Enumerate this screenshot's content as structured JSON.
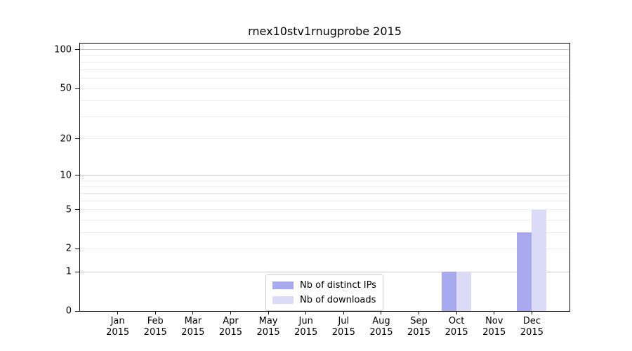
{
  "chart_data": {
    "type": "bar",
    "title": "rnex10stv1rnugprobe 2015",
    "year": "2015",
    "categories": [
      "Jan",
      "Feb",
      "Mar",
      "Apr",
      "May",
      "Jun",
      "Jul",
      "Aug",
      "Sep",
      "Oct",
      "Nov",
      "Dec"
    ],
    "series": [
      {
        "name": "Nb of distinct IPs",
        "color": "#a9a9f0",
        "values": [
          0,
          0,
          0,
          0,
          0,
          0,
          0,
          0,
          0,
          1,
          0,
          3
        ]
      },
      {
        "name": "Nb of downloads",
        "color": "#dbdbf7",
        "values": [
          0,
          0,
          0,
          0,
          0,
          0,
          0,
          0,
          0,
          1,
          0,
          5
        ]
      }
    ],
    "xlabel": "",
    "ylabel": "",
    "yscale": "log(1+x)",
    "ylim": [
      0,
      113
    ],
    "y_ticks": [
      0,
      1,
      2,
      5,
      10,
      20,
      50,
      100
    ],
    "y_gridlines_major": [
      1,
      10,
      100
    ],
    "y_gridlines_minor": [
      2,
      3,
      4,
      5,
      6,
      7,
      8,
      9,
      20,
      30,
      40,
      50,
      60,
      70,
      80,
      90
    ],
    "grid": "horizontal",
    "legend_position": "lower center"
  },
  "colors": {
    "bar_distinct_ips": "#a9a9f0",
    "bar_downloads": "#dbdbf7",
    "grid_major": "#c8c8c8",
    "grid_minor": "#ececec",
    "axis": "#000000",
    "legend_border": "#cccccc",
    "background": "#ffffff"
  }
}
